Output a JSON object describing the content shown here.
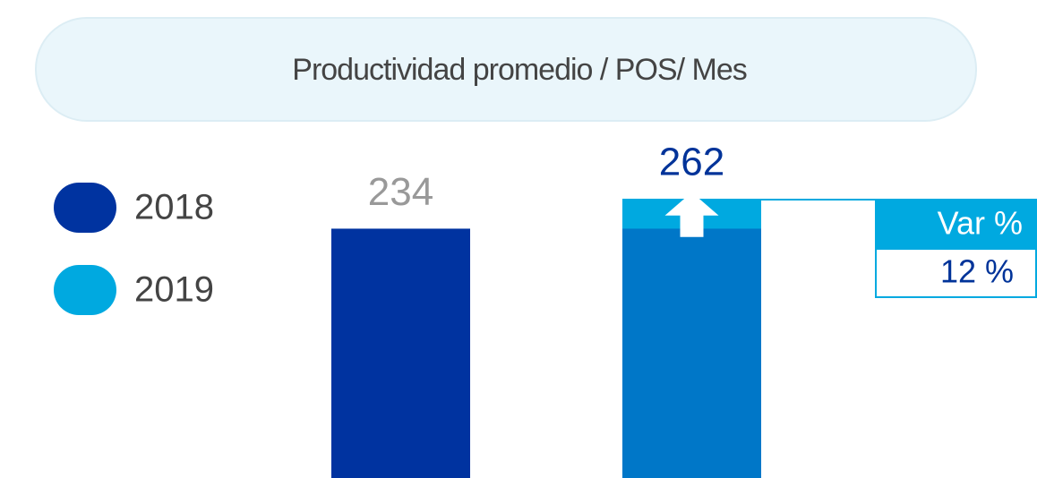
{
  "chart_data": {
    "type": "bar",
    "title": "Productividad promedio / POS/ Mes",
    "series": [
      {
        "name": "2018",
        "color": "#0033a0",
        "values": [
          234
        ]
      },
      {
        "name": "2019",
        "color": "#00a9e0",
        "values": [
          262
        ]
      }
    ],
    "base_color": "#0077c8",
    "variation": {
      "title": "Var %",
      "values": [
        12
      ],
      "value_labels": [
        "12 %"
      ]
    }
  }
}
